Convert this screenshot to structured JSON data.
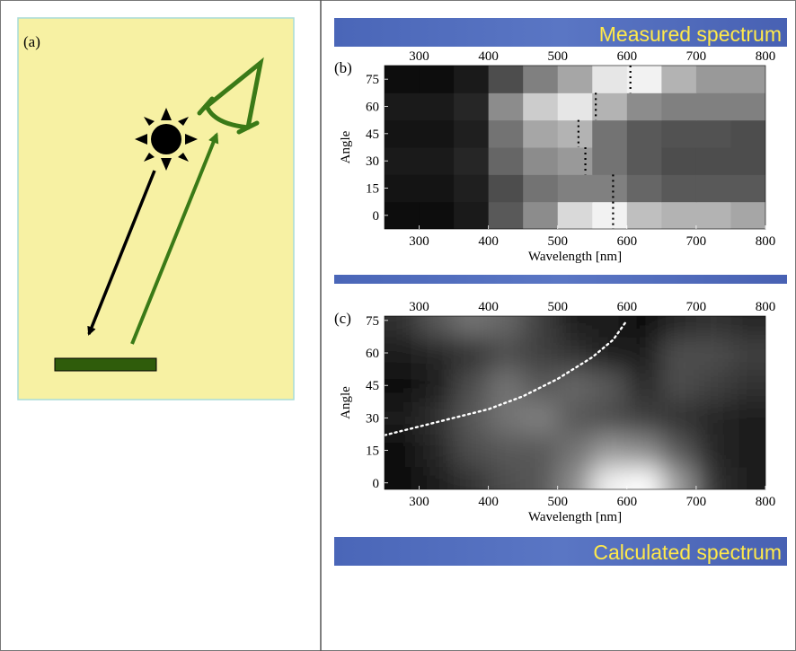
{
  "panel_a": {
    "label": "(a)"
  },
  "chart_data": [
    {
      "type": "heatmap",
      "title": "Measured spectrum",
      "panel_label": "(b)",
      "xlabel": "Wavelength [nm]",
      "ylabel": "Angle",
      "x": [
        275,
        325,
        375,
        425,
        475,
        525,
        575,
        625,
        675,
        725,
        775
      ],
      "y": [
        0,
        15,
        30,
        45,
        60,
        75
      ],
      "z": [
        [
          0.05,
          0.05,
          0.1,
          0.35,
          0.55,
          0.85,
          0.95,
          0.75,
          0.7,
          0.7,
          0.65
        ],
        [
          0.08,
          0.08,
          0.12,
          0.3,
          0.45,
          0.5,
          0.5,
          0.4,
          0.35,
          0.35,
          0.35
        ],
        [
          0.1,
          0.1,
          0.15,
          0.4,
          0.55,
          0.6,
          0.45,
          0.35,
          0.3,
          0.3,
          0.3
        ],
        [
          0.08,
          0.08,
          0.12,
          0.45,
          0.65,
          0.7,
          0.45,
          0.35,
          0.32,
          0.32,
          0.3
        ],
        [
          0.1,
          0.1,
          0.15,
          0.55,
          0.8,
          0.9,
          0.7,
          0.55,
          0.5,
          0.5,
          0.5
        ],
        [
          0.05,
          0.05,
          0.1,
          0.3,
          0.5,
          0.65,
          0.9,
          0.95,
          0.7,
          0.6,
          0.6
        ]
      ],
      "overlay": {
        "style": "row-markers",
        "x": [
          580,
          580,
          540,
          530,
          555,
          605
        ],
        "y": [
          0,
          15,
          30,
          45,
          60,
          75
        ]
      },
      "xlim": [
        250,
        800
      ],
      "ylim": [
        -7.5,
        82.5
      ],
      "xticks": [
        300,
        400,
        500,
        600,
        700,
        800
      ],
      "yticks": [
        0,
        15,
        30,
        45,
        60,
        75
      ],
      "smooth": false
    },
    {
      "type": "heatmap",
      "title": "Calculated spectrum",
      "panel_label": "(c)",
      "xlabel": "Wavelength [nm]",
      "ylabel": "Angle",
      "x": [
        275,
        325,
        375,
        425,
        475,
        525,
        575,
        625,
        675,
        725,
        775
      ],
      "y": [
        0,
        15,
        30,
        45,
        60,
        75
      ],
      "z": [
        [
          0.05,
          0.1,
          0.2,
          0.3,
          0.35,
          0.55,
          0.95,
          1.0,
          0.6,
          0.2,
          0.1
        ],
        [
          0.05,
          0.15,
          0.3,
          0.35,
          0.35,
          0.45,
          0.6,
          0.55,
          0.35,
          0.15,
          0.1
        ],
        [
          0.1,
          0.2,
          0.35,
          0.45,
          0.5,
          0.35,
          0.3,
          0.25,
          0.2,
          0.15,
          0.1
        ],
        [
          0.05,
          0.1,
          0.3,
          0.45,
          0.35,
          0.4,
          0.35,
          0.15,
          0.3,
          0.25,
          0.2
        ],
        [
          0.1,
          0.15,
          0.2,
          0.3,
          0.25,
          0.2,
          0.1,
          0.1,
          0.3,
          0.3,
          0.25
        ],
        [
          0.2,
          0.35,
          0.45,
          0.4,
          0.25,
          0.1,
          0.1,
          0.05,
          0.15,
          0.2,
          0.15
        ]
      ],
      "overlay": {
        "style": "curve",
        "x": [
          250,
          300,
          350,
          400,
          450,
          500,
          550,
          580,
          600
        ],
        "y": [
          22,
          26,
          30,
          34,
          40,
          48,
          58,
          66,
          75
        ]
      },
      "xlim": [
        250,
        800
      ],
      "ylim": [
        -3,
        77
      ],
      "xticks": [
        300,
        400,
        500,
        600,
        700,
        800
      ],
      "yticks": [
        0,
        15,
        30,
        45,
        60,
        75
      ],
      "smooth": true
    }
  ]
}
